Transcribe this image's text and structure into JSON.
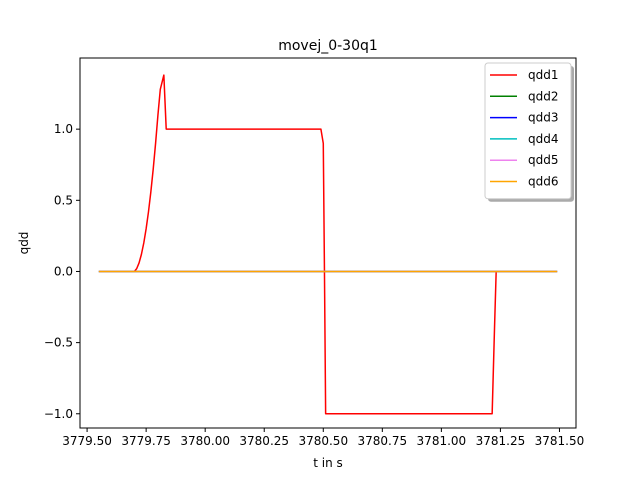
{
  "chart_data": {
    "type": "line",
    "title": "movej_0-30q1",
    "xlabel": "t in s",
    "ylabel": "qdd",
    "xlim": [
      3779.47,
      3781.57
    ],
    "ylim": [
      -1.1,
      1.5
    ],
    "xticks": [
      3779.5,
      3779.75,
      3780.0,
      3780.25,
      3780.5,
      3780.75,
      3781.0,
      3781.25,
      3781.5
    ],
    "xtick_labels": [
      "3779.50",
      "3779.75",
      "3780.00",
      "3780.25",
      "3780.50",
      "3780.75",
      "3781.00",
      "3781.25",
      "3781.50"
    ],
    "yticks": [
      -1.0,
      -0.5,
      0.0,
      0.5,
      1.0
    ],
    "ytick_labels": [
      "−1.0",
      "−0.5",
      "0.0",
      "0.5",
      "1.0"
    ],
    "grid": false,
    "legend_position": "top-right",
    "series": [
      {
        "name": "qdd1",
        "color": "#ff0000",
        "points": [
          [
            3779.55,
            0.0
          ],
          [
            3779.7,
            0.0
          ],
          [
            3779.71,
            0.02
          ],
          [
            3779.72,
            0.06
          ],
          [
            3779.73,
            0.12
          ],
          [
            3779.74,
            0.2
          ],
          [
            3779.75,
            0.3
          ],
          [
            3779.76,
            0.42
          ],
          [
            3779.77,
            0.56
          ],
          [
            3779.78,
            0.72
          ],
          [
            3779.79,
            0.9
          ],
          [
            3779.8,
            1.1
          ],
          [
            3779.81,
            1.28
          ],
          [
            3779.825,
            1.38
          ],
          [
            3779.835,
            1.0
          ],
          [
            3780.49,
            1.0
          ],
          [
            3780.5,
            0.9
          ],
          [
            3780.505,
            0.0
          ],
          [
            3780.51,
            -1.0
          ],
          [
            3781.215,
            -1.0
          ],
          [
            3781.225,
            -0.4
          ],
          [
            3781.232,
            0.0
          ],
          [
            3781.49,
            0.0
          ]
        ]
      },
      {
        "name": "qdd2",
        "color": "#008000",
        "points": [
          [
            3779.55,
            0.0
          ],
          [
            3781.49,
            0.0
          ]
        ]
      },
      {
        "name": "qdd3",
        "color": "#0000ff",
        "points": [
          [
            3779.55,
            0.0
          ],
          [
            3781.49,
            0.0
          ]
        ]
      },
      {
        "name": "qdd4",
        "color": "#00bfbf",
        "points": [
          [
            3779.55,
            0.0
          ],
          [
            3781.49,
            0.0
          ]
        ]
      },
      {
        "name": "qdd5",
        "color": "#ee82ee",
        "points": [
          [
            3779.55,
            0.0
          ],
          [
            3781.49,
            0.0
          ]
        ]
      },
      {
        "name": "qdd6",
        "color": "#ffa500",
        "points": [
          [
            3779.55,
            0.0
          ],
          [
            3781.49,
            0.0
          ]
        ]
      }
    ]
  }
}
